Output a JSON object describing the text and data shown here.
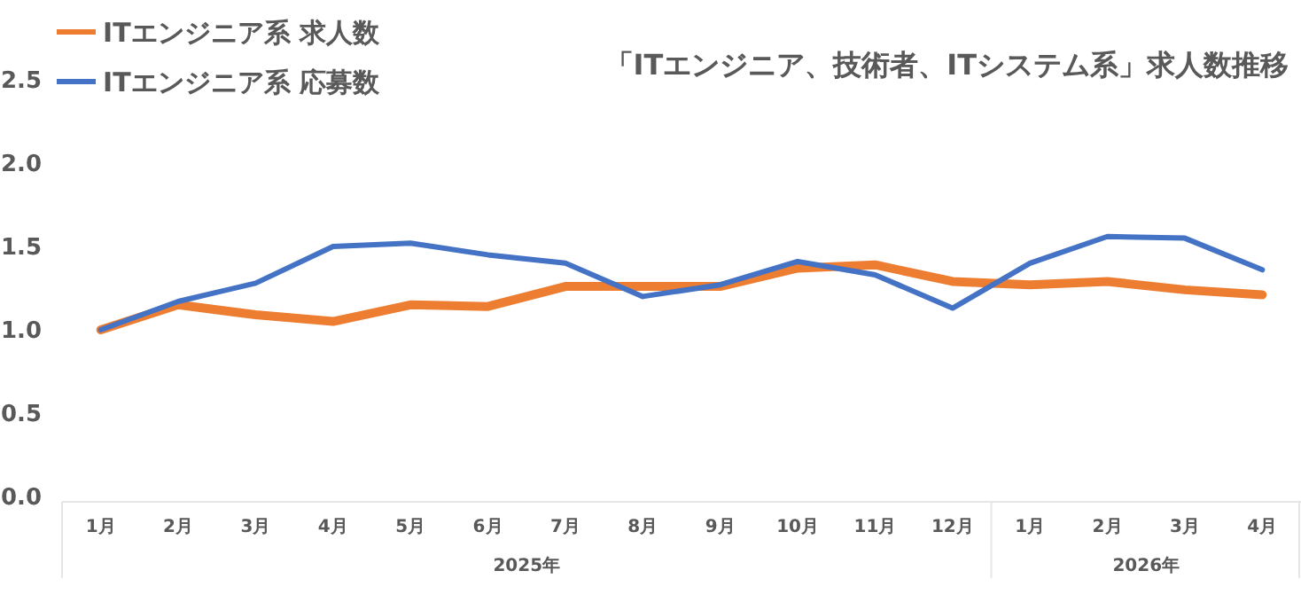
{
  "chart_data": {
    "type": "line",
    "title": "「ITエンジニア、技術者、ITシステム系」求人数推移",
    "categories": [
      "1月",
      "2月",
      "3月",
      "4月",
      "5月",
      "6月",
      "7月",
      "8月",
      "9月",
      "10月",
      "11月",
      "12月",
      "1月",
      "2月",
      "3月",
      "4月"
    ],
    "series": [
      {
        "name": "ITエンジニア系 求人数",
        "color": "#ed7d31",
        "values": [
          1.0,
          1.15,
          1.09,
          1.05,
          1.15,
          1.14,
          1.26,
          1.26,
          1.26,
          1.37,
          1.39,
          1.29,
          1.27,
          1.29,
          1.24,
          1.21
        ]
      },
      {
        "name": "ITエンジニア系 応募数",
        "color": "#4472c4",
        "values": [
          1.0,
          1.17,
          1.28,
          1.5,
          1.52,
          1.45,
          1.4,
          1.2,
          1.27,
          1.41,
          1.33,
          1.13,
          1.4,
          1.56,
          1.55,
          1.36
        ]
      }
    ],
    "annotations": [
      "2025年",
      "2026年"
    ],
    "ylim": [
      0,
      2.5
    ],
    "yticks": [
      {
        "value": 0,
        "label": "0.0"
      },
      {
        "value": 0.5,
        "label": "0.5"
      },
      {
        "value": 1,
        "label": "1.0"
      },
      {
        "value": 1.5,
        "label": "1.5"
      },
      {
        "value": 2,
        "label": "2.0"
      },
      {
        "value": 2.5,
        "label": "2.5"
      }
    ],
    "grid": false,
    "legend": "top left",
    "marker": "none",
    "line_style": "solid"
  }
}
